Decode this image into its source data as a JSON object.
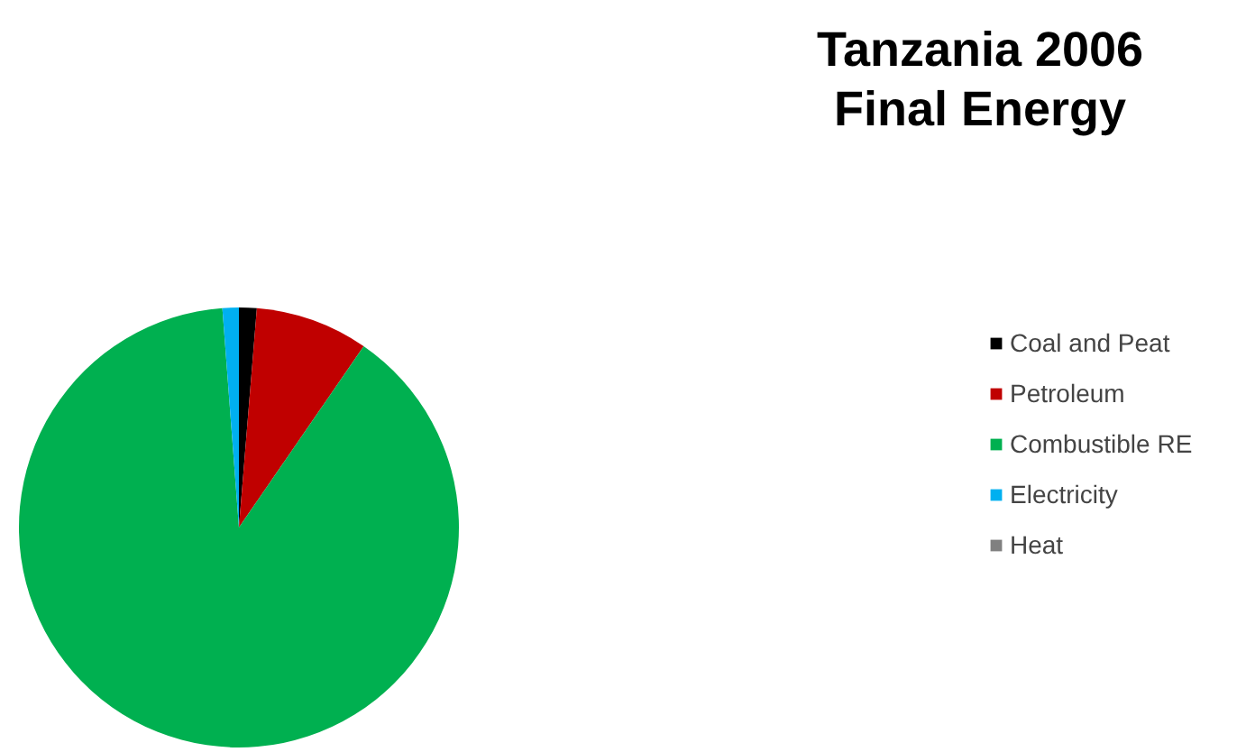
{
  "chart_data": {
    "type": "pie",
    "title": "Tanzania 2006 Final Energy",
    "categories": [
      "Coal and Peat",
      "Petroleum",
      "Combustible RE",
      "Electricity",
      "Heat"
    ],
    "values": [
      1.3,
      8.3,
      89.2,
      1.2,
      0
    ],
    "colors": [
      "#000000",
      "#c00000",
      "#00b050",
      "#00b0f0",
      "#808080"
    ],
    "legend": "right"
  }
}
